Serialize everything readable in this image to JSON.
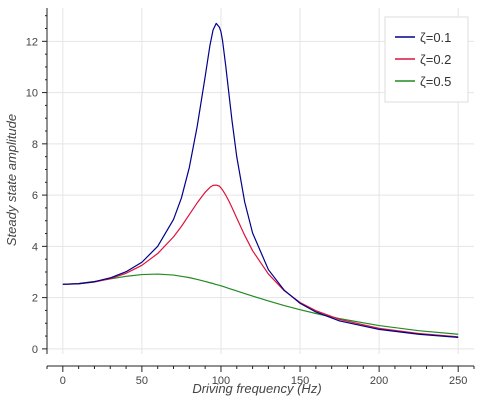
{
  "chart_data": {
    "type": "line",
    "title": "",
    "xlabel": "Driving frequency (Hz)",
    "ylabel": "Steady state amplitude",
    "xlim": [
      -10,
      260
    ],
    "ylim": [
      -0.2,
      13.3
    ],
    "xticks": [
      0,
      50,
      100,
      150,
      200,
      250
    ],
    "yticks": [
      0,
      2,
      4,
      6,
      8,
      10,
      12
    ],
    "grid": true,
    "legend_position": "top-right",
    "x": [
      0,
      10,
      20,
      30,
      40,
      50,
      60,
      70,
      75,
      80,
      85,
      90,
      93,
      95,
      97,
      99,
      100,
      101,
      103,
      105,
      107,
      110,
      115,
      120,
      130,
      140,
      150,
      160,
      175,
      200,
      225,
      250
    ],
    "series": [
      {
        "name": "ζ=0.1",
        "color": "#00008b",
        "values": [
          2.52,
          2.54,
          2.62,
          2.77,
          3.01,
          3.38,
          4.0,
          5.05,
          5.89,
          7.08,
          8.69,
          10.62,
          11.83,
          12.44,
          12.7,
          12.55,
          12.37,
          12.03,
          11.05,
          9.97,
          8.9,
          7.49,
          5.73,
          4.52,
          3.09,
          2.29,
          1.78,
          1.44,
          1.09,
          0.76,
          0.57,
          0.45
        ]
      },
      {
        "name": "ζ=0.2",
        "color": "#dc143c",
        "values": [
          2.52,
          2.54,
          2.61,
          2.74,
          2.95,
          3.26,
          3.72,
          4.37,
          4.78,
          5.24,
          5.7,
          6.11,
          6.3,
          6.38,
          6.39,
          6.35,
          6.28,
          6.2,
          6.0,
          5.77,
          5.51,
          5.1,
          4.43,
          3.83,
          2.92,
          2.27,
          1.81,
          1.49,
          1.15,
          0.8,
          0.6,
          0.47
        ]
      },
      {
        "name": "ζ=0.5",
        "color": "#228b22",
        "values": [
          2.52,
          2.55,
          2.63,
          2.73,
          2.83,
          2.9,
          2.92,
          2.88,
          2.83,
          2.78,
          2.71,
          2.63,
          2.58,
          2.55,
          2.51,
          2.48,
          2.46,
          2.44,
          2.4,
          2.36,
          2.32,
          2.26,
          2.16,
          2.06,
          1.87,
          1.69,
          1.53,
          1.38,
          1.18,
          0.91,
          0.71,
          0.57
        ]
      }
    ]
  }
}
